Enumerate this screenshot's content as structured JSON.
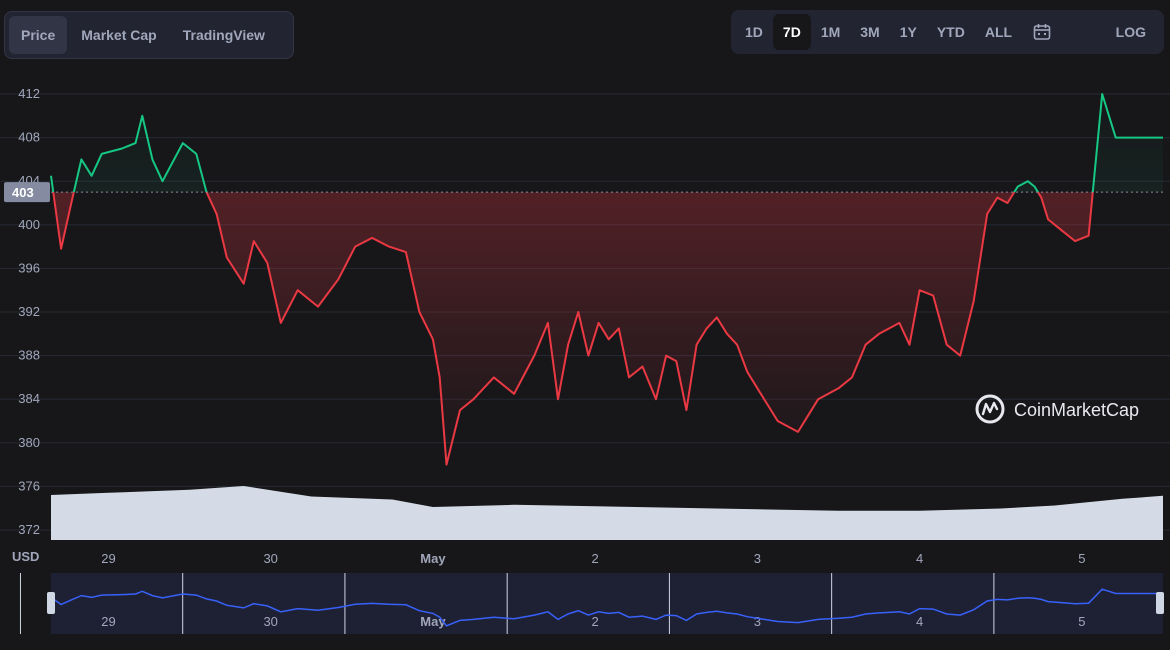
{
  "tabs": [
    {
      "label": "Price",
      "active": true
    },
    {
      "label": "Market Cap",
      "active": false
    },
    {
      "label": "TradingView",
      "active": false
    }
  ],
  "ranges": [
    {
      "label": "1D",
      "active": false
    },
    {
      "label": "7D",
      "active": true
    },
    {
      "label": "1M",
      "active": false
    },
    {
      "label": "3M",
      "active": false
    },
    {
      "label": "1Y",
      "active": false
    },
    {
      "label": "YTD",
      "active": false
    },
    {
      "label": "ALL",
      "active": false
    }
  ],
  "calendar_icon": "calendar-icon",
  "log_label": "LOG",
  "watermark": "CoinMarketCap",
  "colors": {
    "up": "#16c784",
    "down": "#ea3943",
    "volume": "#d5dbe6",
    "navigator_line": "#3861fb",
    "background": "#17171a"
  },
  "chart_data": {
    "type": "line",
    "ylabel": "USD",
    "reference_price": 403,
    "current_price_label": "403",
    "ylim": [
      370,
      414
    ],
    "y_ticks": [
      372,
      376,
      380,
      384,
      388,
      392,
      396,
      400,
      404,
      408,
      412
    ],
    "x_range": [
      "2023-04-28 15:30",
      "2023-05-05 12:00"
    ],
    "x_ticks": [
      {
        "label": "29",
        "date": "2023-04-29",
        "bold": false
      },
      {
        "label": "30",
        "date": "2023-04-30",
        "bold": false
      },
      {
        "label": "May",
        "date": "2023-05-01",
        "bold": true
      },
      {
        "label": "2",
        "date": "2023-05-02",
        "bold": false
      },
      {
        "label": "3",
        "date": "2023-05-03",
        "bold": false
      },
      {
        "label": "4",
        "date": "2023-05-04",
        "bold": false
      },
      {
        "label": "5",
        "date": "2023-05-05",
        "bold": false
      }
    ],
    "price_series": {
      "x": [
        "2023-04-28 15:30",
        "2023-04-28 17:00",
        "2023-04-28 18:30",
        "2023-04-28 20:00",
        "2023-04-28 21:30",
        "2023-04-28 23:00",
        "2023-04-29 02:00",
        "2023-04-29 04:00",
        "2023-04-29 05:00",
        "2023-04-29 06:30",
        "2023-04-29 08:00",
        "2023-04-29 11:00",
        "2023-04-29 13:00",
        "2023-04-29 14:30",
        "2023-04-29 16:00",
        "2023-04-29 17:30",
        "2023-04-29 20:00",
        "2023-04-29 21:30",
        "2023-04-29 23:30",
        "2023-04-30 01:30",
        "2023-04-30 04:00",
        "2023-04-30 07:00",
        "2023-04-30 10:00",
        "2023-04-30 12:30",
        "2023-04-30 15:00",
        "2023-04-30 17:30",
        "2023-04-30 20:00",
        "2023-04-30 22:00",
        "2023-05-01 00:00",
        "2023-05-01 01:00",
        "2023-05-01 02:00",
        "2023-05-01 04:00",
        "2023-05-01 06:00",
        "2023-05-01 09:00",
        "2023-05-01 12:00",
        "2023-05-01 15:00",
        "2023-05-01 17:00",
        "2023-05-01 18:30",
        "2023-05-01 20:00",
        "2023-05-01 21:30",
        "2023-05-01 23:00",
        "2023-05-02 00:30",
        "2023-05-02 02:00",
        "2023-05-02 03:30",
        "2023-05-02 05:00",
        "2023-05-02 07:00",
        "2023-05-02 09:00",
        "2023-05-02 10:30",
        "2023-05-02 12:00",
        "2023-05-02 13:30",
        "2023-05-02 15:00",
        "2023-05-02 16:30",
        "2023-05-02 18:00",
        "2023-05-02 19:30",
        "2023-05-02 21:00",
        "2023-05-02 22:30",
        "2023-05-03 00:00",
        "2023-05-03 03:00",
        "2023-05-03 06:00",
        "2023-05-03 09:00",
        "2023-05-03 12:00",
        "2023-05-03 14:00",
        "2023-05-03 16:00",
        "2023-05-03 18:00",
        "2023-05-03 19:30",
        "2023-05-03 21:00",
        "2023-05-03 22:30",
        "2023-05-04 00:00",
        "2023-05-04 02:00",
        "2023-05-04 04:00",
        "2023-05-04 06:00",
        "2023-05-04 08:00",
        "2023-05-04 10:00",
        "2023-05-04 11:30",
        "2023-05-04 13:00",
        "2023-05-04 14:30",
        "2023-05-04 16:00",
        "2023-05-04 17:00",
        "2023-05-04 18:00",
        "2023-05-04 19:00",
        "2023-05-04 21:00",
        "2023-05-04 23:00",
        "2023-05-05 01:00",
        "2023-05-05 03:00",
        "2023-05-05 05:00",
        "2023-05-05 07:00",
        "2023-05-05 09:00",
        "2023-05-05 10:00",
        "2023-05-05 10:30",
        "2023-05-05 11:00",
        "2023-05-05 11:30",
        "2023-05-05 12:00"
      ],
      "y": [
        404.5,
        397.8,
        402,
        406,
        404.5,
        406.5,
        407,
        407.5,
        410,
        406,
        404,
        407.5,
        406.5,
        403,
        401,
        397,
        394.6,
        398.5,
        396.5,
        391,
        394,
        392.5,
        395,
        398,
        398.8,
        398,
        397.5,
        392,
        389.5,
        386,
        378,
        383,
        384,
        386,
        384.5,
        388,
        391,
        384,
        389,
        392,
        388,
        391,
        389.5,
        390.5,
        386,
        387,
        384,
        388,
        387.5,
        383,
        389,
        390.5,
        391.5,
        390,
        389,
        386.5,
        385,
        382,
        381,
        384,
        385,
        386,
        389,
        390,
        390.5,
        391,
        389,
        394,
        393.5,
        389,
        388,
        393,
        401,
        402.5,
        402,
        403.5,
        404,
        403.5,
        402.5,
        400.5,
        399.5,
        398.5,
        399,
        412,
        408,
        408,
        408,
        408,
        408,
        408,
        408,
        408
      ]
    },
    "volume_series": {
      "note_free": true,
      "x": [
        "2023-04-28 15:30",
        "2023-04-29 00:00",
        "2023-04-29 12:00",
        "2023-04-29 20:00",
        "2023-04-30 06:00",
        "2023-04-30 18:00",
        "2023-05-01 00:00",
        "2023-05-01 12:00",
        "2023-05-02 00:00",
        "2023-05-02 12:00",
        "2023-05-03 00:00",
        "2023-05-03 12:00",
        "2023-05-04 00:00",
        "2023-05-04 12:00",
        "2023-05-04 20:00",
        "2023-05-05 06:00",
        "2023-05-05 12:00"
      ],
      "y": [
        0.6,
        0.63,
        0.67,
        0.72,
        0.58,
        0.54,
        0.44,
        0.47,
        0.45,
        0.43,
        0.41,
        0.39,
        0.39,
        0.42,
        0.46,
        0.55,
        0.59
      ]
    }
  }
}
